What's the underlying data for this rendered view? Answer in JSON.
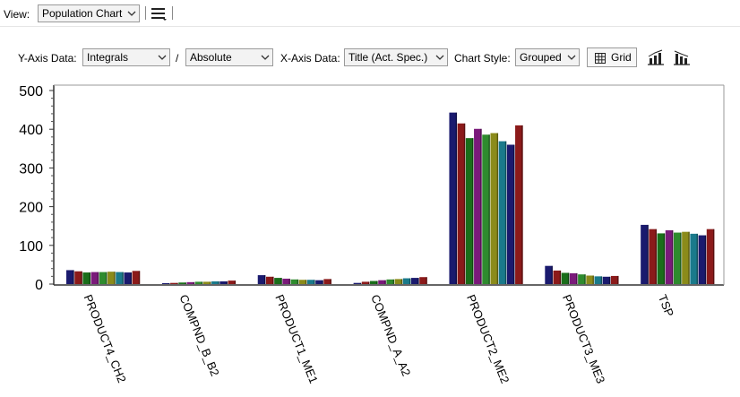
{
  "toolbar": {
    "view_label": "View:",
    "view_value": "Population Chart"
  },
  "options": {
    "y_axis_label": "Y-Axis Data:",
    "y_axis_value": "Integrals",
    "slash": "/",
    "scale_value": "Absolute",
    "x_axis_label": "X-Axis Data:",
    "x_axis_value": "Title (Act. Spec.)",
    "chart_style_label": "Chart Style:",
    "chart_style_value": "Grouped",
    "grid_label": "Grid"
  },
  "icons": {
    "menu": "hamburger-menu-icon",
    "grid": "table-grid-icon",
    "chart_a": "bar-chart-up-icon",
    "chart_b": "bar-chart-down-icon"
  },
  "chart_data": {
    "type": "bar",
    "title": "",
    "xlabel": "",
    "ylabel": "",
    "ylim": [
      0,
      500
    ],
    "yticks": [
      0,
      100,
      200,
      300,
      400,
      500
    ],
    "grid": false,
    "legend": "none",
    "categories": [
      "PRODUCT4_CH2",
      "COMPND_B_B2",
      "PRODUCT1_ME1",
      "COMPND_A_A2",
      "PRODUCT2_ME2",
      "PRODUCT3_ME3",
      "TSP"
    ],
    "series_colors": [
      "#1a1a6e",
      "#8b1a1a",
      "#1a6e1a",
      "#7a1a7a",
      "#2e8b2e",
      "#8b8b1a",
      "#1a7a8b",
      "#1a1a6e",
      "#8b1a1a"
    ],
    "series": [
      {
        "values": [
          36,
          2,
          23,
          3,
          443,
          47,
          153
        ]
      },
      {
        "values": [
          33,
          3,
          19,
          6,
          415,
          35,
          142
        ]
      },
      {
        "values": [
          30,
          4,
          16,
          8,
          377,
          29,
          131
        ]
      },
      {
        "values": [
          31,
          5,
          14,
          10,
          401,
          28,
          139
        ]
      },
      {
        "values": [
          31,
          6,
          12,
          12,
          386,
          25,
          133
        ]
      },
      {
        "values": [
          32,
          6,
          11,
          13,
          390,
          22,
          135
        ]
      },
      {
        "values": [
          31,
          7,
          11,
          15,
          369,
          20,
          130
        ]
      },
      {
        "values": [
          30,
          7,
          10,
          16,
          360,
          19,
          126
        ]
      },
      {
        "values": [
          34,
          9,
          13,
          18,
          410,
          21,
          142
        ]
      }
    ]
  }
}
